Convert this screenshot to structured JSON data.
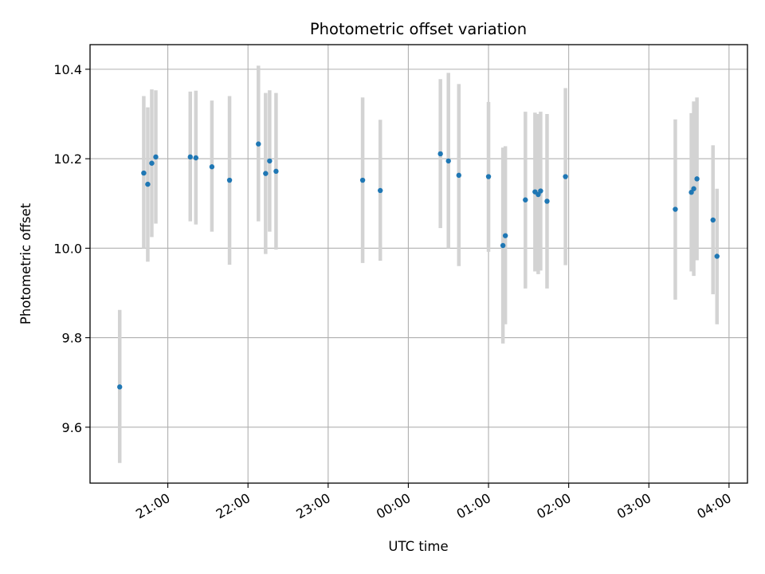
{
  "chart_data": {
    "type": "scatter",
    "title": "Photometric offset variation",
    "xlabel": "UTC time",
    "ylabel": "Photometric offset",
    "grid": true,
    "x_unit": "hours UTC (values above 24 fall after midnight on the next day)",
    "xlim": [
      20.03,
      28.23
    ],
    "ylim": [
      9.475,
      10.455
    ],
    "x_ticks": [
      21,
      22,
      23,
      24,
      25,
      26,
      27,
      28
    ],
    "x_tick_labels": [
      "21:00",
      "22:00",
      "23:00",
      "00:00",
      "01:00",
      "02:00",
      "03:00",
      "04:00"
    ],
    "y_ticks": [
      9.6,
      9.8,
      10.0,
      10.2,
      10.4
    ],
    "y_tick_labels": [
      "9.6",
      "9.8",
      "10.0",
      "10.2",
      "10.4"
    ],
    "colors": {
      "points": "#1f77b4",
      "errorbars": "#d3d3d3",
      "grid": "#b0b0b0"
    },
    "points": [
      {
        "x": 20.4,
        "y": 9.69,
        "ylo": 9.52,
        "yhi": 9.862
      },
      {
        "x": 20.7,
        "y": 10.168,
        "ylo": 10.0,
        "yhi": 10.34
      },
      {
        "x": 20.75,
        "y": 10.143,
        "ylo": 9.97,
        "yhi": 10.315
      },
      {
        "x": 20.8,
        "y": 10.19,
        "ylo": 10.025,
        "yhi": 10.355
      },
      {
        "x": 20.85,
        "y": 10.204,
        "ylo": 10.055,
        "yhi": 10.353
      },
      {
        "x": 21.28,
        "y": 10.204,
        "ylo": 10.06,
        "yhi": 10.35
      },
      {
        "x": 21.35,
        "y": 10.202,
        "ylo": 10.053,
        "yhi": 10.352
      },
      {
        "x": 21.55,
        "y": 10.182,
        "ylo": 10.037,
        "yhi": 10.33
      },
      {
        "x": 21.77,
        "y": 10.152,
        "ylo": 9.963,
        "yhi": 10.34
      },
      {
        "x": 22.13,
        "y": 10.233,
        "ylo": 10.06,
        "yhi": 10.408
      },
      {
        "x": 22.22,
        "y": 10.167,
        "ylo": 9.987,
        "yhi": 10.347
      },
      {
        "x": 22.27,
        "y": 10.195,
        "ylo": 10.037,
        "yhi": 10.353
      },
      {
        "x": 22.35,
        "y": 10.172,
        "ylo": 9.997,
        "yhi": 10.347
      },
      {
        "x": 23.43,
        "y": 10.152,
        "ylo": 9.967,
        "yhi": 10.337
      },
      {
        "x": 23.65,
        "y": 10.129,
        "ylo": 9.972,
        "yhi": 10.287
      },
      {
        "x": 24.4,
        "y": 10.211,
        "ylo": 10.045,
        "yhi": 10.378
      },
      {
        "x": 24.5,
        "y": 10.195,
        "ylo": 10.0,
        "yhi": 10.392
      },
      {
        "x": 24.63,
        "y": 10.163,
        "ylo": 9.96,
        "yhi": 10.367
      },
      {
        "x": 25.0,
        "y": 10.16,
        "ylo": 9.992,
        "yhi": 10.327
      },
      {
        "x": 25.18,
        "y": 10.006,
        "ylo": 9.787,
        "yhi": 10.225
      },
      {
        "x": 25.21,
        "y": 10.028,
        "ylo": 9.83,
        "yhi": 10.228
      },
      {
        "x": 25.46,
        "y": 10.108,
        "ylo": 9.91,
        "yhi": 10.305
      },
      {
        "x": 25.58,
        "y": 10.126,
        "ylo": 9.948,
        "yhi": 10.303
      },
      {
        "x": 25.62,
        "y": 10.12,
        "ylo": 9.942,
        "yhi": 10.3
      },
      {
        "x": 25.65,
        "y": 10.128,
        "ylo": 9.95,
        "yhi": 10.305
      },
      {
        "x": 25.73,
        "y": 10.105,
        "ylo": 9.91,
        "yhi": 10.3
      },
      {
        "x": 25.96,
        "y": 10.16,
        "ylo": 9.962,
        "yhi": 10.358
      },
      {
        "x": 27.33,
        "y": 10.087,
        "ylo": 9.885,
        "yhi": 10.288
      },
      {
        "x": 27.53,
        "y": 10.125,
        "ylo": 9.948,
        "yhi": 10.302
      },
      {
        "x": 27.56,
        "y": 10.133,
        "ylo": 9.938,
        "yhi": 10.328
      },
      {
        "x": 27.6,
        "y": 10.155,
        "ylo": 9.973,
        "yhi": 10.337
      },
      {
        "x": 27.8,
        "y": 10.063,
        "ylo": 9.897,
        "yhi": 10.23
      },
      {
        "x": 27.85,
        "y": 9.982,
        "ylo": 9.83,
        "yhi": 10.133
      }
    ]
  }
}
